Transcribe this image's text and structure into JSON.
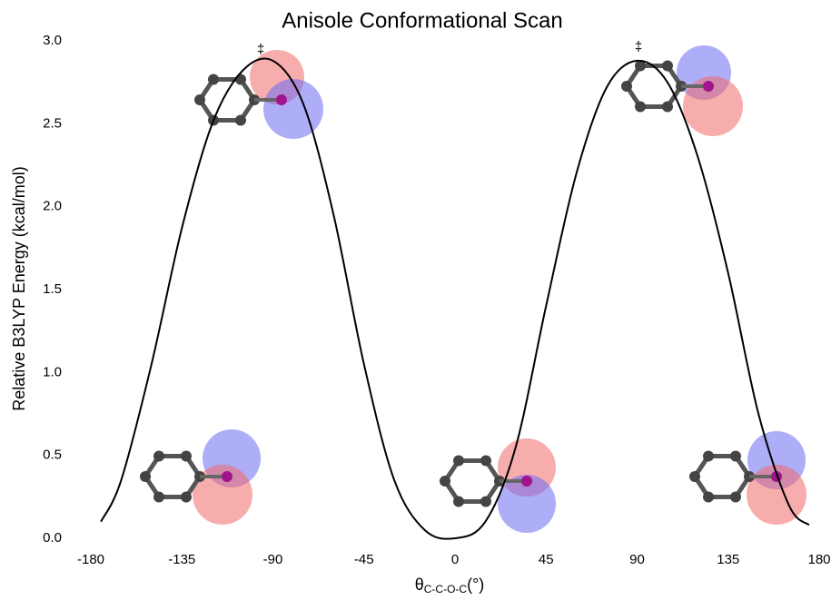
{
  "chart_data": {
    "type": "line",
    "title": "Anisole Conformational Scan",
    "y_label": "Relative B3LYP Energy (kcal/mol)",
    "x_label": {
      "symbol": "θ",
      "subscript": "C-C-O-C",
      "unit": "(°)"
    },
    "annotations": [
      "‡",
      "‡"
    ],
    "xlim": [
      -180,
      180
    ],
    "xticks": [
      -180,
      -135,
      -90,
      -45,
      0,
      45,
      90,
      135,
      180
    ],
    "ylim": [
      0,
      3
    ],
    "yticks": [
      {
        "value": 0,
        "label": "0.0"
      },
      {
        "value": 0.5,
        "label": "0.5"
      },
      {
        "value": 1,
        "label": "1.0"
      },
      {
        "value": 1.5,
        "label": "1.5"
      },
      {
        "value": 2,
        "label": "2.0"
      },
      {
        "value": 2.5,
        "label": "2.5"
      },
      {
        "value": 3,
        "label": "3.0"
      }
    ],
    "grid": false,
    "x": [
      -175,
      -165,
      -150,
      -135,
      -120,
      -105,
      -90,
      -75,
      -60,
      -45,
      -30,
      -15,
      0,
      15,
      30,
      45,
      60,
      75,
      90,
      105,
      120,
      135,
      150,
      165,
      175
    ],
    "series": [
      {
        "color": "#000000",
        "values": [
          0.1,
          0.35,
          1.05,
          1.87,
          2.5,
          2.82,
          2.88,
          2.62,
          1.95,
          1.05,
          0.35,
          0.05,
          0,
          0.1,
          0.55,
          1.4,
          2.2,
          2.72,
          2.88,
          2.75,
          2.3,
          1.6,
          0.75,
          0.2,
          0.08
        ]
      }
    ]
  }
}
